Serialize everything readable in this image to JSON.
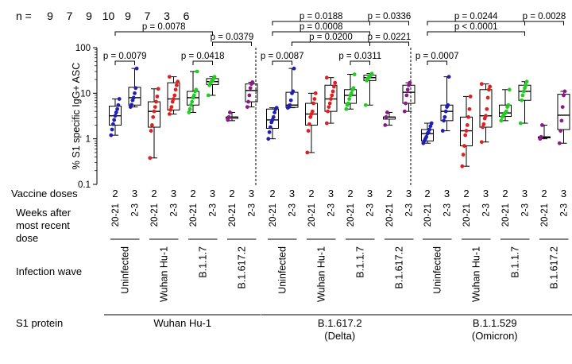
{
  "chart_data": {
    "type": "boxplot",
    "scale": "log",
    "ylabel": "% S1 specific IgG+ ASC",
    "ylim": [
      0.1,
      100
    ],
    "ticks": [
      {
        "value": 0.1,
        "label": "0.1"
      },
      {
        "value": 1,
        "label": "1"
      },
      {
        "value": 10,
        "label": "10"
      },
      {
        "value": 100,
        "label": "100"
      }
    ],
    "n_label": "n =",
    "n_values": [
      "9",
      "7",
      "9",
      "10",
      "9",
      "7",
      "3",
      "6"
    ],
    "colors": {
      "Uninfected": "#1f1fb4",
      "Wuhan Hu-1": "#e02020",
      "B.1.1.7": "#22cc22",
      "B.1.617.2": "#8b1a8b"
    },
    "row_labels": {
      "doses": "Vaccine doses",
      "weeks_line1": "Weeks after",
      "weeks_line2": "most recent",
      "weeks_line3": "dose",
      "infection_wave": "Infection wave",
      "s1_protein": "S1 protein"
    },
    "s1_panels": [
      {
        "line1": "Wuhan Hu-1",
        "line2": ""
      },
      {
        "line1": "B.1.617.2",
        "line2": "(Delta)"
      },
      {
        "line1": "B.1.1.529",
        "line2": "(Omicron)"
      }
    ],
    "infection_waves": [
      "Uninfected",
      "Wuhan Hu-1",
      "B.1.1.7",
      "B.1.617.2"
    ],
    "x_doses": [
      "2",
      "3"
    ],
    "x_weeks": [
      "20-21",
      "2-3"
    ],
    "panels": [
      {
        "name": "Wuhan Hu-1",
        "groups": [
          {
            "wave": "Uninfected",
            "doses": "2",
            "weeks": "20-21",
            "min": 1.2,
            "q1": 2.0,
            "median": 3.2,
            "q3": 5.2,
            "max": 7.5,
            "points": [
              1.2,
              1.6,
              2.1,
              2.6,
              3.2,
              3.8,
              4.5,
              5.5,
              7.5
            ]
          },
          {
            "wave": "Uninfected",
            "doses": "3",
            "weeks": "2-3",
            "min": 5.0,
            "q1": 5.5,
            "median": 8.0,
            "q3": 13.5,
            "max": 35,
            "points": [
              5.0,
              5.6,
              7.0,
              8.0,
              10,
              13,
              35
            ]
          },
          {
            "wave": "Wuhan Hu-1",
            "doses": "2",
            "weeks": "20-21",
            "min": 0.38,
            "q1": 1.8,
            "median": 4.0,
            "q3": 6.5,
            "max": 12.5,
            "points": [
              0.38,
              1.5,
              2.0,
              3.0,
              4.0,
              5.0,
              6.5,
              8.5,
              12.5
            ]
          },
          {
            "wave": "Wuhan Hu-1",
            "doses": "3",
            "weeks": "2-3",
            "min": 3.5,
            "q1": 4.3,
            "median": 7.5,
            "q3": 17,
            "max": 23,
            "points": [
              3.5,
              4.3,
              5.0,
              6.5,
              7.5,
              9.0,
              12,
              15,
              18,
              23
            ]
          },
          {
            "wave": "B.1.1.7",
            "doses": "2",
            "weeks": "20-21",
            "min": 3.8,
            "q1": 5.5,
            "median": 8.0,
            "q3": 11,
            "max": 30,
            "points": [
              3.8,
              4.5,
              5.5,
              6.5,
              8.0,
              9.0,
              11,
              12,
              30
            ]
          },
          {
            "wave": "B.1.1.7",
            "doses": "3",
            "weeks": "2-3",
            "min": 9.0,
            "q1": 15.5,
            "median": 18,
            "q3": 21,
            "max": 23,
            "points": [
              9.0,
              15,
              17,
              18,
              19,
              21,
              23
            ]
          },
          {
            "wave": "B.1.617.2",
            "doses": "2",
            "weeks": "20-21",
            "min": 2.5,
            "q1": 2.8,
            "median": 3.0,
            "q3": 3.0,
            "max": 3.8,
            "points": [
              2.6,
              3.0,
              3.8
            ]
          },
          {
            "wave": "B.1.617.2",
            "doses": "3",
            "weeks": "2-3",
            "min": 5.0,
            "q1": 6.5,
            "median": 11.5,
            "q3": 16,
            "max": 17.5,
            "points": [
              5.0,
              6.5,
              9.0,
              13,
              16,
              17.5
            ]
          }
        ],
        "brackets": [
          {
            "label": "p = 0.0078",
            "from": 0,
            "to": 5,
            "level": 2
          },
          {
            "label": "p = 0.0379",
            "from": 5,
            "to": 7,
            "level": 1
          },
          {
            "label": "p = 0.0079",
            "from": 0,
            "to": 1,
            "level": 0
          },
          {
            "label": "p = 0.0418",
            "from": 4,
            "to": 5,
            "level": 0
          }
        ]
      },
      {
        "name": "B.1.617.2 (Delta)",
        "groups": [
          {
            "wave": "Uninfected",
            "doses": "2",
            "weeks": "20-21",
            "min": 1.0,
            "q1": 1.7,
            "median": 2.6,
            "q3": 4.5,
            "max": 4.8,
            "points": [
              1.0,
              1.4,
              1.8,
              2.3,
              2.6,
              3.0,
              3.8,
              4.5,
              4.8
            ]
          },
          {
            "wave": "Uninfected",
            "doses": "3",
            "weeks": "2-3",
            "min": 4.8,
            "q1": 4.9,
            "median": 5.5,
            "q3": 10.5,
            "max": 35,
            "points": [
              4.8,
              5.0,
              5.5,
              7.0,
              10,
              11,
              35
            ]
          },
          {
            "wave": "Wuhan Hu-1",
            "doses": "2",
            "weeks": "20-21",
            "min": 0.5,
            "q1": 2.0,
            "median": 3.5,
            "q3": 6.0,
            "max": 10,
            "points": [
              0.5,
              1.5,
              2.1,
              3.0,
              3.5,
              4.0,
              6.0,
              7.5,
              10
            ]
          },
          {
            "wave": "Wuhan Hu-1",
            "doses": "3",
            "weeks": "2-3",
            "min": 2.2,
            "q1": 4.0,
            "median": 7.5,
            "q3": 15,
            "max": 22,
            "points": [
              2.2,
              4.0,
              5.0,
              6.0,
              7.5,
              9.0,
              11,
              14,
              17,
              22
            ]
          },
          {
            "wave": "B.1.1.7",
            "doses": "2",
            "weeks": "20-21",
            "min": 4.5,
            "q1": 6.0,
            "median": 9.0,
            "q3": 12,
            "max": 26,
            "points": [
              4.5,
              5.5,
              6.0,
              7.5,
              9.0,
              10,
              12,
              13,
              26
            ]
          },
          {
            "wave": "B.1.1.7",
            "doses": "3",
            "weeks": "2-3",
            "min": 5.5,
            "q1": 19,
            "median": 22,
            "q3": 25,
            "max": 27,
            "points": [
              5.5,
              19,
              21,
              22,
              24,
              25,
              27
            ]
          },
          {
            "wave": "B.1.617.2",
            "doses": "2",
            "weeks": "20-21",
            "min": 2.0,
            "q1": 2.7,
            "median": 3.0,
            "q3": 3.0,
            "max": 3.8,
            "points": [
              2.0,
              3.0,
              3.8
            ]
          },
          {
            "wave": "B.1.617.2",
            "doses": "3",
            "weeks": "2-3",
            "min": 4.0,
            "q1": 6.0,
            "median": 10.5,
            "q3": 15,
            "max": 17,
            "points": [
              4.0,
              6.0,
              9.0,
              12,
              15,
              17
            ]
          }
        ],
        "brackets": [
          {
            "label": "p = 0.0188",
            "from": 0,
            "to": 5,
            "level": 3
          },
          {
            "label": "p = 0.0336",
            "from": 5,
            "to": 7,
            "level": 3
          },
          {
            "label": "p = 0.0008",
            "from": 0,
            "to": 5,
            "level": 2
          },
          {
            "label": "p = 0.0200",
            "from": 1,
            "to": 5,
            "level": 1
          },
          {
            "label": "p = 0.0221",
            "from": 5,
            "to": 7,
            "level": 1
          },
          {
            "label": "p = 0.0087",
            "from": 0,
            "to": 1,
            "level": 0
          },
          {
            "label": "p = 0.0311",
            "from": 4,
            "to": 5,
            "level": 0
          }
        ]
      },
      {
        "name": "B.1.1.529 (Omicron)",
        "groups": [
          {
            "wave": "Uninfected",
            "doses": "2",
            "weeks": "20-21",
            "min": 0.8,
            "q1": 0.9,
            "median": 1.3,
            "q3": 1.6,
            "max": 2.2,
            "points": [
              0.8,
              0.9,
              1.0,
              1.1,
              1.3,
              1.4,
              1.6,
              1.9,
              2.2
            ]
          },
          {
            "wave": "Uninfected",
            "doses": "3",
            "weeks": "2-3",
            "min": 1.5,
            "q1": 2.5,
            "median": 4.0,
            "q3": 5.5,
            "max": 23,
            "points": [
              1.5,
              2.5,
              3.0,
              4.0,
              5.0,
              5.5,
              23
            ]
          },
          {
            "wave": "Wuhan Hu-1",
            "doses": "2",
            "weeks": "20-21",
            "min": 0.25,
            "q1": 0.7,
            "median": 1.5,
            "q3": 3.0,
            "max": 8.5,
            "points": [
              0.25,
              0.45,
              0.7,
              1.2,
              1.5,
              2.0,
              3.0,
              4.5,
              8.5
            ]
          },
          {
            "wave": "Wuhan Hu-1",
            "doses": "3",
            "weeks": "2-3",
            "min": 0.85,
            "q1": 1.8,
            "median": 3.2,
            "q3": 12,
            "max": 16,
            "points": [
              0.85,
              1.8,
              2.1,
              2.8,
              3.2,
              4.5,
              8.0,
              12,
              14,
              16
            ]
          },
          {
            "wave": "B.1.1.7",
            "doses": "2",
            "weeks": "20-21",
            "min": 2.5,
            "q1": 3.1,
            "median": 3.7,
            "q3": 5.5,
            "max": 12,
            "points": [
              2.5,
              3.0,
              3.2,
              3.5,
              3.7,
              4.0,
              5.0,
              5.5,
              12
            ]
          },
          {
            "wave": "B.1.1.7",
            "doses": "3",
            "weeks": "2-3",
            "min": 2.2,
            "q1": 7.0,
            "median": 11,
            "q3": 15,
            "max": 18,
            "points": [
              2.2,
              7.0,
              9.0,
              11,
              13,
              15,
              18
            ]
          },
          {
            "wave": "B.1.617.2",
            "doses": "2",
            "weeks": "20-21",
            "min": 1.0,
            "q1": 1.05,
            "median": 1.1,
            "q3": 1.1,
            "max": 2.0,
            "points": [
              1.0,
              1.1,
              2.0
            ]
          },
          {
            "wave": "B.1.617.2",
            "doses": "3",
            "weeks": "2-3",
            "min": 0.8,
            "q1": 1.6,
            "median": 3.3,
            "q3": 9.5,
            "max": 11,
            "points": [
              0.8,
              1.5,
              2.5,
              5.0,
              9.0,
              11
            ]
          }
        ],
        "brackets": [
          {
            "label": "p = 0.0244",
            "from": 0,
            "to": 5,
            "level": 3
          },
          {
            "label": "p = 0.0028",
            "from": 5,
            "to": 7,
            "level": 3
          },
          {
            "label": "p < 0.0001",
            "from": 0,
            "to": 5,
            "level": 2
          },
          {
            "label": "p = 0.0007",
            "from": 0,
            "to": 1,
            "level": 0
          }
        ]
      }
    ]
  }
}
